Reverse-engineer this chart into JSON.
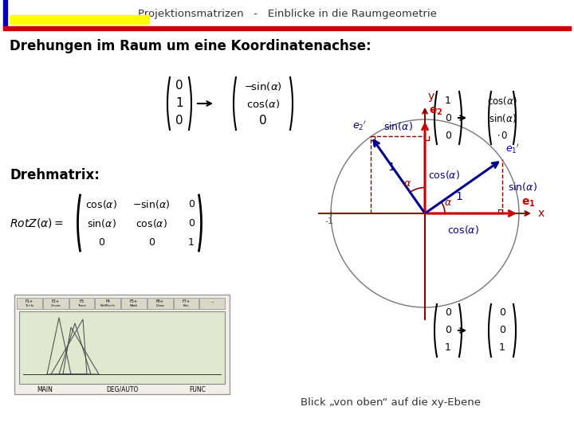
{
  "title_header": "Projektionsmatrizen   -   Einblicke in die Raumgeometrie",
  "main_title": "Drehungen im Raum um eine Koordinatenachse:",
  "sub_title1": "Drehmatrix:",
  "caption": "Blick „von oben“ auf die xy-Ebene",
  "alpha_deg": 35,
  "bg_color": "#ffffff",
  "header_bar_blue": "#0000bb",
  "header_bar_yellow": "#ffff00",
  "header_bar_red": "#cc0000",
  "axis_color": "#8b0000",
  "circle_color": "#777777",
  "e1_color": "#cc0000",
  "e2_color": "#cc0000",
  "e1p_color": "#00008b",
  "e2p_color": "#00008b",
  "dashed_color": "#8b0000",
  "angle_color": "#8b0000",
  "label_color_blue": "#00008b",
  "label_color_red": "#cc0000"
}
